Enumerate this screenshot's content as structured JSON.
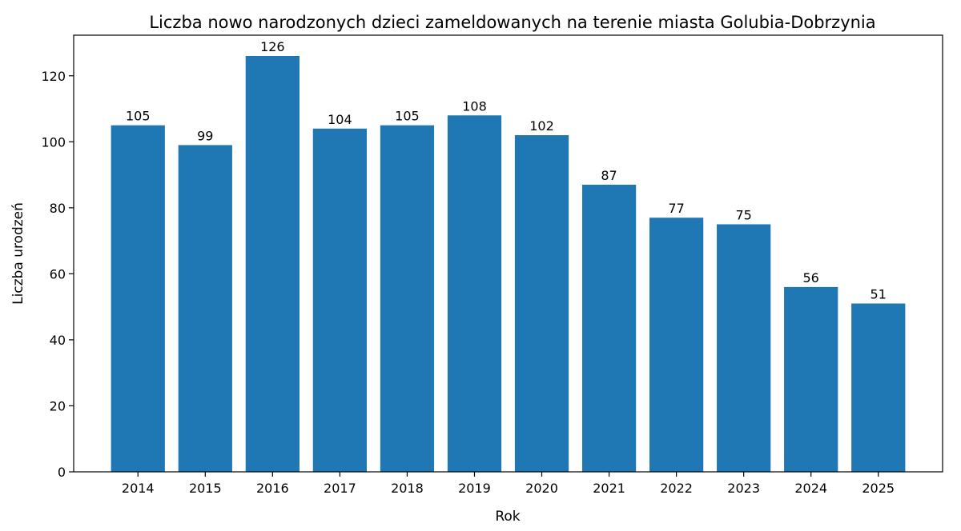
{
  "chart_data": {
    "type": "bar",
    "title": "Liczba nowo narodzonych dzieci zameldowanych na terenie miasta Golubia-Dobrzynia",
    "xlabel": "Rok",
    "ylabel": "Liczba urodzeń",
    "categories": [
      "2014",
      "2015",
      "2016",
      "2017",
      "2018",
      "2019",
      "2020",
      "2021",
      "2022",
      "2023",
      "2024",
      "2025"
    ],
    "values": [
      105,
      99,
      126,
      104,
      105,
      108,
      102,
      87,
      77,
      75,
      56,
      51
    ],
    "ylim": [
      0,
      132.3
    ],
    "yticks": [
      0,
      20,
      40,
      60,
      80,
      100,
      120
    ],
    "grid": false,
    "data_labels": true,
    "colors": {
      "bar": "#1f77b4",
      "axis": "#000000",
      "background": "#ffffff"
    }
  }
}
